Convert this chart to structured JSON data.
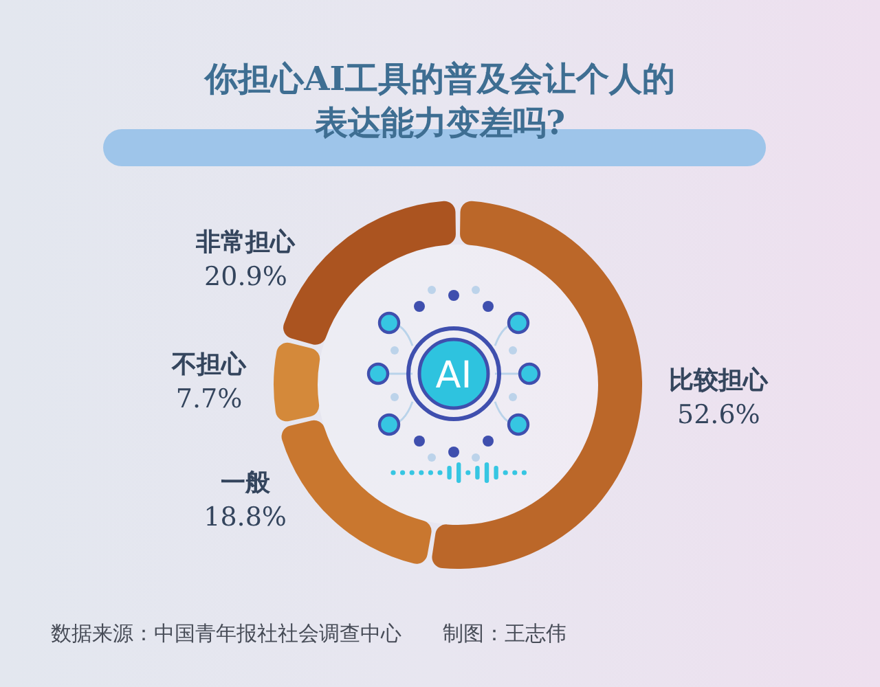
{
  "chart_data": {
    "type": "donut",
    "title": "你担心AI工具的普及会让个人的表达能力变差吗?",
    "categories": [
      "比较担心",
      "一般",
      "不担心",
      "非常担心"
    ],
    "values": [
      52.6,
      18.8,
      7.7,
      20.9
    ],
    "colors": [
      "#bb6729",
      "#c9772f",
      "#d4893a",
      "#ab5420"
    ],
    "value_labels": [
      "52.6%",
      "18.8%",
      "7.7%",
      "20.9%"
    ],
    "annotations": [
      "AI",
      "数据来源：中国青年报社社会调查中心",
      "制图：王志伟"
    ]
  }
}
